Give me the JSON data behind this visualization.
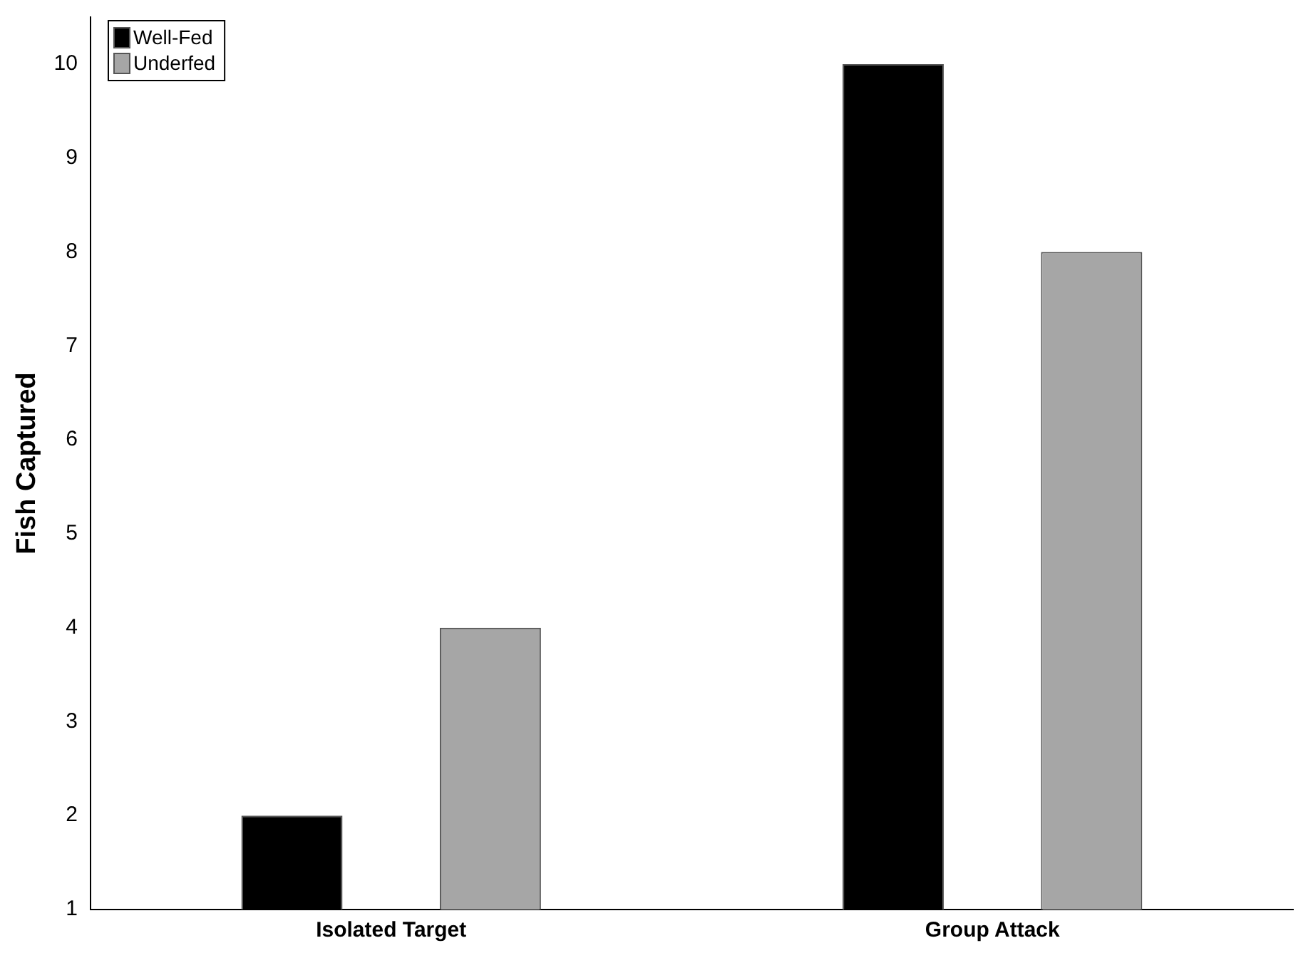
{
  "chart_data": {
    "type": "bar",
    "ylabel": "Fish Captured",
    "categories": [
      "Isolated Target",
      "Group Attack"
    ],
    "series": [
      {
        "name": "Well-Fed",
        "color": "#000000",
        "values": [
          2,
          10
        ]
      },
      {
        "name": "Underfed",
        "color": "#a6a6a6",
        "values": [
          4,
          8
        ]
      }
    ],
    "ylim": [
      1,
      10.5
    ],
    "yticks": [
      1,
      2,
      3,
      4,
      5,
      6,
      7,
      8,
      9,
      10
    ],
    "grid": false,
    "legend": "top left"
  }
}
